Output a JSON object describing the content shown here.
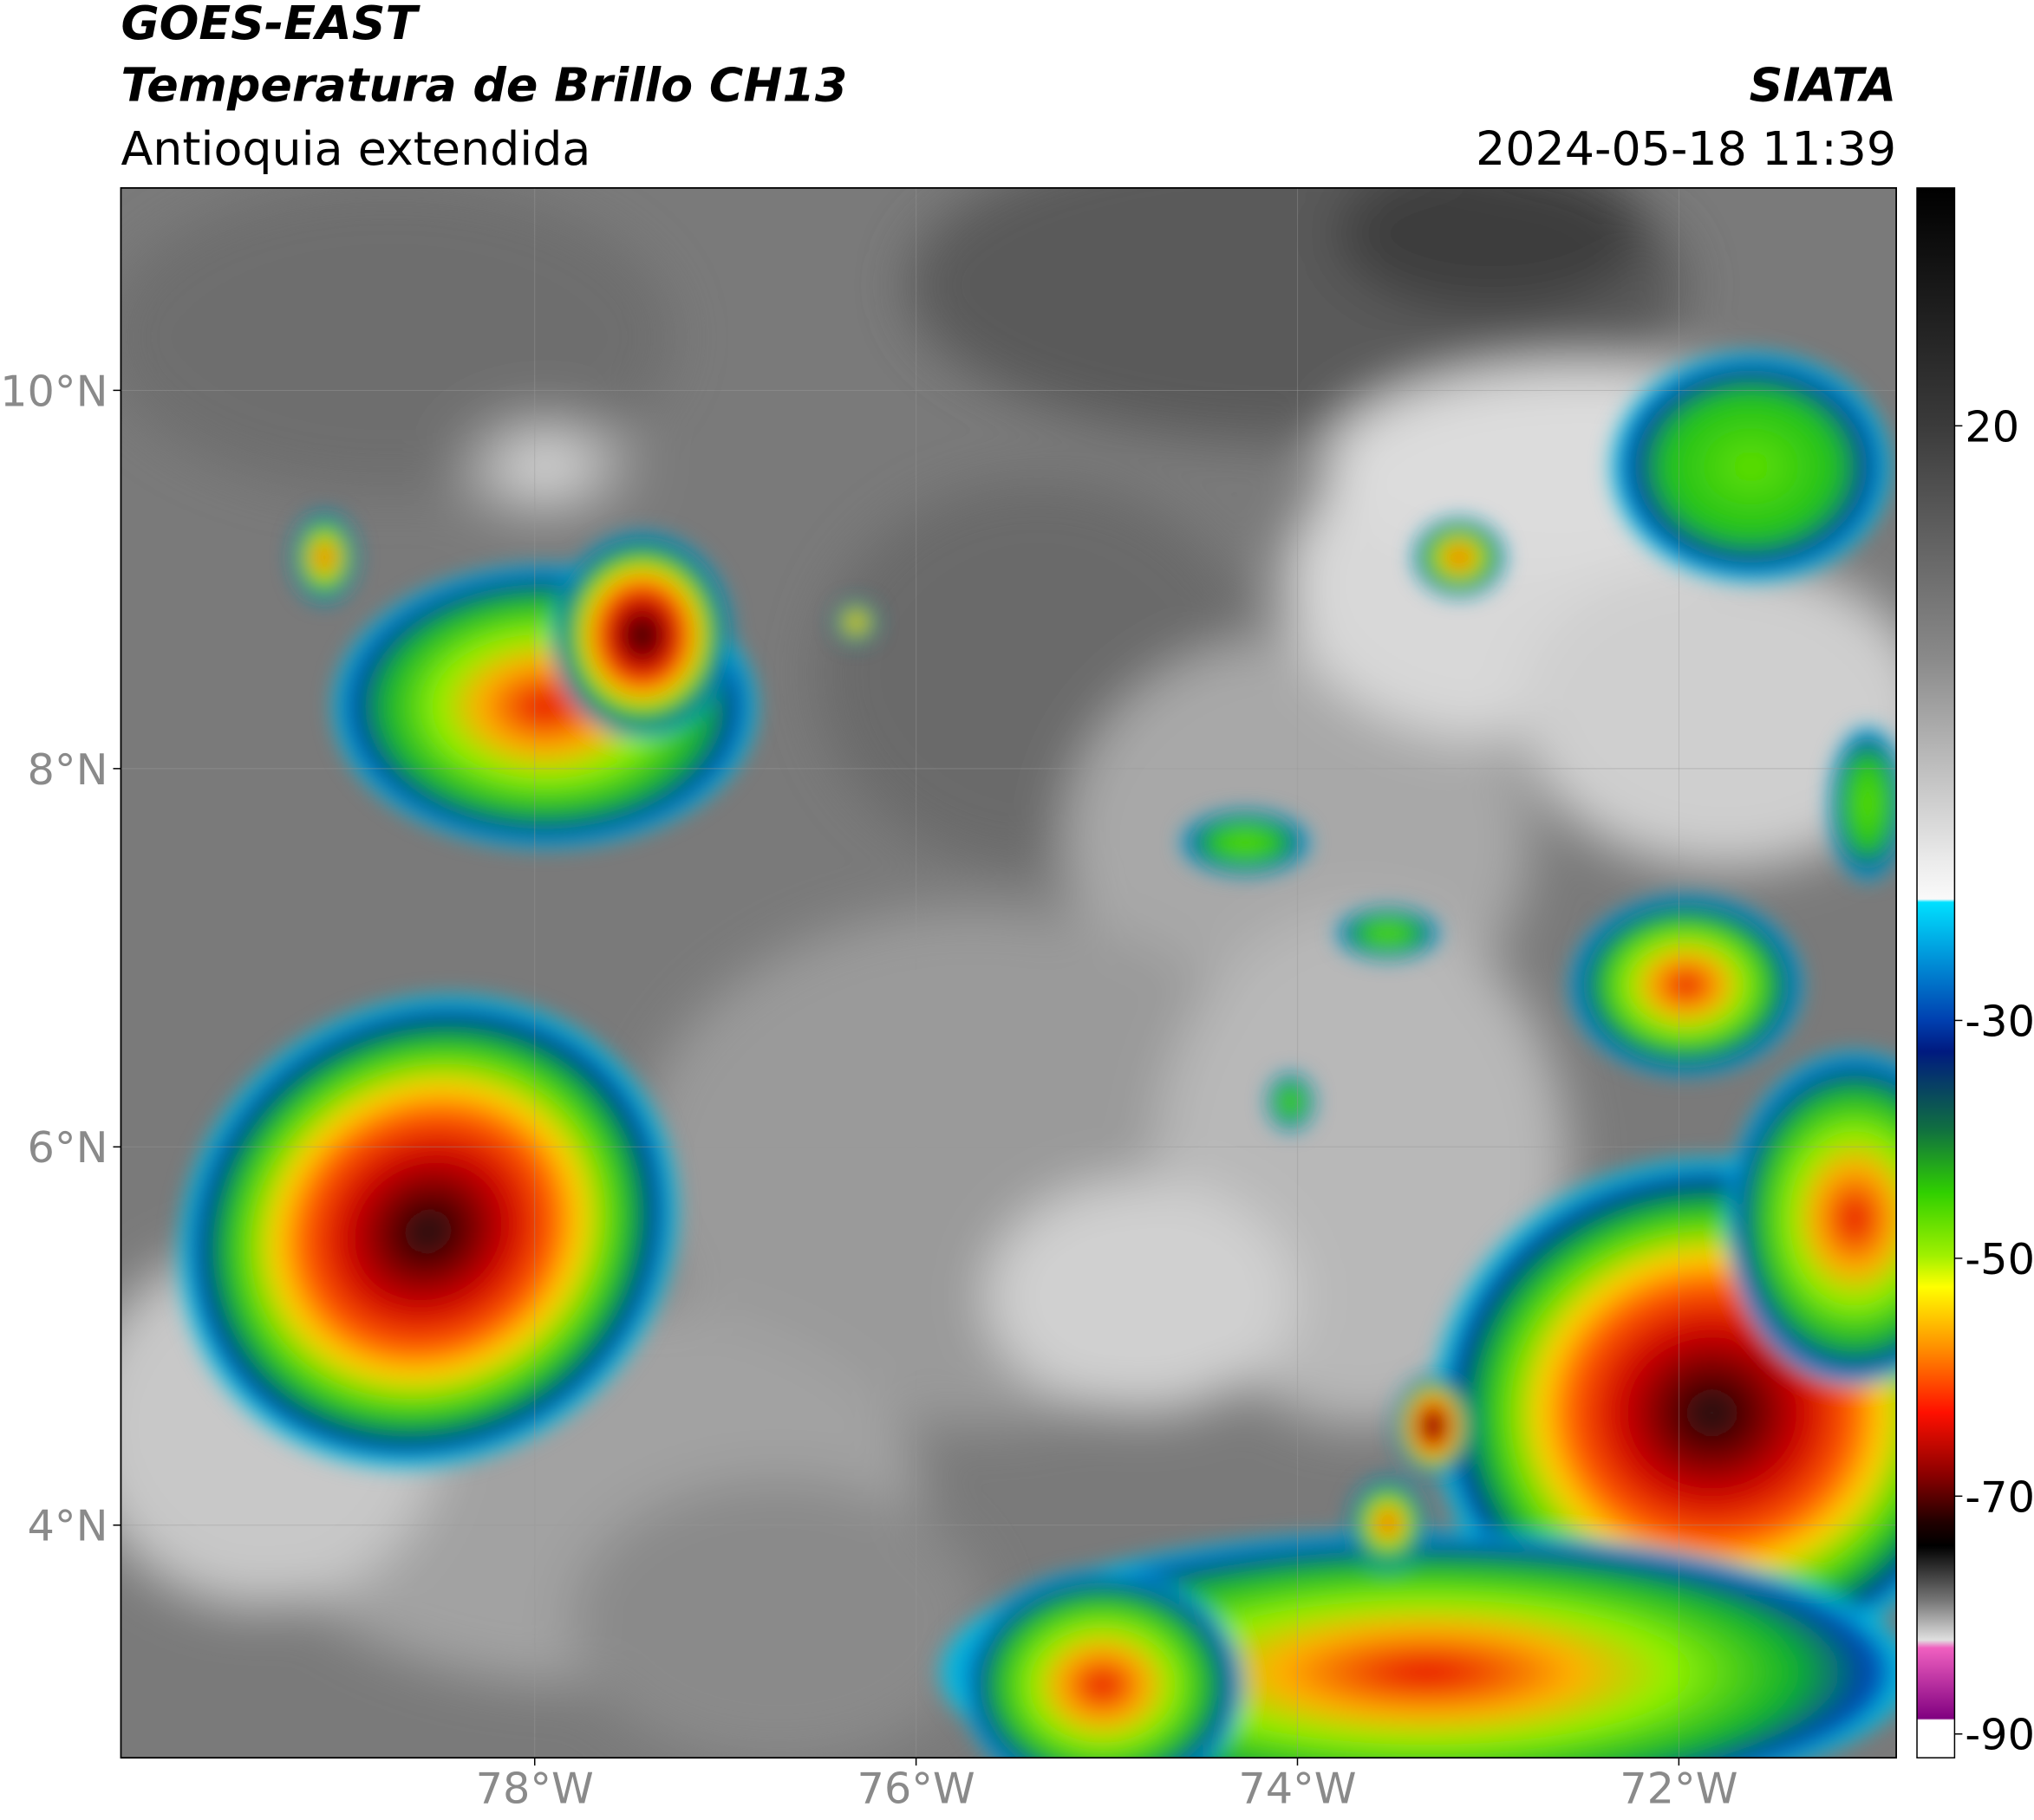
{
  "header": {
    "title": "GOES-EAST",
    "subtitle": "Temperatura de Brillo CH13",
    "region": "Antioquia extendida",
    "source": "SIATA",
    "timestamp": "2024-05-18 11:39"
  },
  "map": {
    "xlim": [
      -80.17,
      -70.86
    ],
    "ylim": [
      2.77,
      11.07
    ],
    "xticks": [
      {
        "value": -78,
        "label": "78°W"
      },
      {
        "value": -76,
        "label": "76°W"
      },
      {
        "value": -74,
        "label": "74°W"
      },
      {
        "value": -72,
        "label": "72°W"
      }
    ],
    "yticks": [
      {
        "value": 4,
        "label": "4°N"
      },
      {
        "value": 6,
        "label": "6°N"
      },
      {
        "value": 8,
        "label": "8°N"
      },
      {
        "value": 10,
        "label": "10°N"
      }
    ],
    "grid": true
  },
  "colorbar": {
    "lim": [
      -92,
      40
    ],
    "ticks": [
      20,
      -30,
      -50,
      -70,
      -90
    ]
  }
}
